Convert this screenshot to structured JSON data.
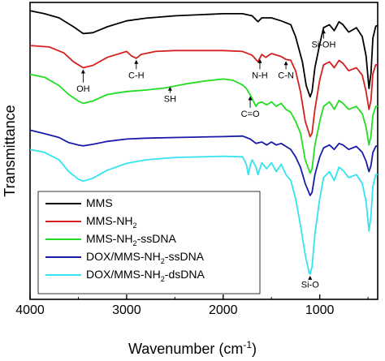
{
  "chart_data": {
    "type": "line",
    "xlabel": "Wavenumber (cm",
    "xlabel_sup": "-1",
    "xlabel_close": ")",
    "ylabel": "Transmittance",
    "xlim": [
      4000,
      400
    ],
    "x_reversed": true,
    "ylim": [
      0,
      1
    ],
    "y_ticks_shown": false,
    "grid": false,
    "legend_placement": "bottom-left",
    "x_ticks": [
      {
        "value": 4000,
        "label": "4000"
      },
      {
        "value": 3000,
        "label": "3000"
      },
      {
        "value": 2000,
        "label": "2000"
      },
      {
        "value": 1000,
        "label": "1000"
      }
    ],
    "series": [
      {
        "name": "MMS",
        "name_sub": "",
        "name_rest": "",
        "color": "#000000",
        "points": [
          [
            4000,
            0.972
          ],
          [
            3850,
            0.962
          ],
          [
            3700,
            0.948
          ],
          [
            3550,
            0.918
          ],
          [
            3450,
            0.895
          ],
          [
            3350,
            0.898
          ],
          [
            3200,
            0.918
          ],
          [
            3000,
            0.938
          ],
          [
            2800,
            0.947
          ],
          [
            2500,
            0.955
          ],
          [
            2000,
            0.962
          ],
          [
            1800,
            0.962
          ],
          [
            1700,
            0.955
          ],
          [
            1640,
            0.935
          ],
          [
            1600,
            0.948
          ],
          [
            1500,
            0.948
          ],
          [
            1400,
            0.938
          ],
          [
            1300,
            0.925
          ],
          [
            1250,
            0.885
          ],
          [
            1180,
            0.8
          ],
          [
            1140,
            0.72
          ],
          [
            1100,
            0.682
          ],
          [
            1080,
            0.7
          ],
          [
            1050,
            0.78
          ],
          [
            1000,
            0.86
          ],
          [
            960,
            0.915
          ],
          [
            900,
            0.925
          ],
          [
            850,
            0.905
          ],
          [
            800,
            0.935
          ],
          [
            760,
            0.925
          ],
          [
            700,
            0.9
          ],
          [
            620,
            0.915
          ],
          [
            560,
            0.885
          ],
          [
            520,
            0.82
          ],
          [
            490,
            0.71
          ],
          [
            470,
            0.76
          ],
          [
            450,
            0.88
          ],
          [
            420,
            0.92
          ],
          [
            400,
            0.922
          ]
        ]
      },
      {
        "name": "MMS-NH",
        "name_sub": "2",
        "name_rest": "",
        "color": "#d42020",
        "points": [
          [
            4000,
            0.855
          ],
          [
            3800,
            0.85
          ],
          [
            3650,
            0.83
          ],
          [
            3550,
            0.8
          ],
          [
            3450,
            0.78
          ],
          [
            3350,
            0.788
          ],
          [
            3200,
            0.815
          ],
          [
            3000,
            0.835
          ],
          [
            2950,
            0.82
          ],
          [
            2900,
            0.812
          ],
          [
            2850,
            0.825
          ],
          [
            2700,
            0.835
          ],
          [
            2500,
            0.838
          ],
          [
            2000,
            0.838
          ],
          [
            1800,
            0.835
          ],
          [
            1700,
            0.822
          ],
          [
            1640,
            0.8
          ],
          [
            1600,
            0.825
          ],
          [
            1560,
            0.815
          ],
          [
            1500,
            0.828
          ],
          [
            1400,
            0.818
          ],
          [
            1350,
            0.808
          ],
          [
            1300,
            0.805
          ],
          [
            1250,
            0.77
          ],
          [
            1200,
            0.7
          ],
          [
            1150,
            0.6
          ],
          [
            1100,
            0.548
          ],
          [
            1080,
            0.56
          ],
          [
            1050,
            0.64
          ],
          [
            1000,
            0.74
          ],
          [
            960,
            0.79
          ],
          [
            900,
            0.8
          ],
          [
            850,
            0.78
          ],
          [
            800,
            0.805
          ],
          [
            760,
            0.795
          ],
          [
            700,
            0.77
          ],
          [
            620,
            0.78
          ],
          [
            560,
            0.755
          ],
          [
            520,
            0.7
          ],
          [
            490,
            0.64
          ],
          [
            470,
            0.67
          ],
          [
            450,
            0.76
          ],
          [
            420,
            0.79
          ],
          [
            400,
            0.79
          ]
        ]
      },
      {
        "name": "MMS-NH",
        "name_sub": "2",
        "name_rest": "-ssDNA",
        "color": "#22dd22",
        "points": [
          [
            4000,
            0.758
          ],
          [
            3850,
            0.748
          ],
          [
            3700,
            0.72
          ],
          [
            3600,
            0.69
          ],
          [
            3500,
            0.668
          ],
          [
            3450,
            0.66
          ],
          [
            3350,
            0.668
          ],
          [
            3200,
            0.69
          ],
          [
            3000,
            0.7
          ],
          [
            2800,
            0.705
          ],
          [
            2600,
            0.712
          ],
          [
            2400,
            0.725
          ],
          [
            2200,
            0.735
          ],
          [
            2000,
            0.742
          ],
          [
            1900,
            0.738
          ],
          [
            1800,
            0.722
          ],
          [
            1760,
            0.71
          ],
          [
            1720,
            0.688
          ],
          [
            1660,
            0.65
          ],
          [
            1640,
            0.66
          ],
          [
            1600,
            0.665
          ],
          [
            1550,
            0.655
          ],
          [
            1500,
            0.665
          ],
          [
            1450,
            0.65
          ],
          [
            1400,
            0.66
          ],
          [
            1350,
            0.64
          ],
          [
            1300,
            0.63
          ],
          [
            1250,
            0.6
          ],
          [
            1200,
            0.56
          ],
          [
            1150,
            0.47
          ],
          [
            1100,
            0.425
          ],
          [
            1080,
            0.44
          ],
          [
            1050,
            0.52
          ],
          [
            1000,
            0.6
          ],
          [
            960,
            0.65
          ],
          [
            900,
            0.665
          ],
          [
            850,
            0.64
          ],
          [
            800,
            0.67
          ],
          [
            760,
            0.66
          ],
          [
            700,
            0.64
          ],
          [
            620,
            0.65
          ],
          [
            560,
            0.625
          ],
          [
            520,
            0.58
          ],
          [
            490,
            0.52
          ],
          [
            470,
            0.55
          ],
          [
            450,
            0.62
          ],
          [
            420,
            0.65
          ],
          [
            400,
            0.65
          ]
        ]
      },
      {
        "name": "DOX/MMS-NH",
        "name_sub": "2",
        "name_rest": "-ssDNA",
        "color": "#1a1aaa",
        "points": [
          [
            4000,
            0.57
          ],
          [
            3850,
            0.558
          ],
          [
            3700,
            0.545
          ],
          [
            3600,
            0.528
          ],
          [
            3500,
            0.52
          ],
          [
            3450,
            0.517
          ],
          [
            3350,
            0.522
          ],
          [
            3200,
            0.532
          ],
          [
            3000,
            0.54
          ],
          [
            2800,
            0.543
          ],
          [
            2500,
            0.545
          ],
          [
            2000,
            0.548
          ],
          [
            1800,
            0.55
          ],
          [
            1760,
            0.545
          ],
          [
            1720,
            0.54
          ],
          [
            1660,
            0.525
          ],
          [
            1600,
            0.53
          ],
          [
            1550,
            0.52
          ],
          [
            1500,
            0.53
          ],
          [
            1450,
            0.52
          ],
          [
            1400,
            0.525
          ],
          [
            1350,
            0.515
          ],
          [
            1300,
            0.505
          ],
          [
            1250,
            0.48
          ],
          [
            1200,
            0.445
          ],
          [
            1150,
            0.39
          ],
          [
            1100,
            0.35
          ],
          [
            1080,
            0.36
          ],
          [
            1050,
            0.42
          ],
          [
            1000,
            0.48
          ],
          [
            960,
            0.51
          ],
          [
            900,
            0.52
          ],
          [
            850,
            0.505
          ],
          [
            800,
            0.525
          ],
          [
            760,
            0.52
          ],
          [
            700,
            0.505
          ],
          [
            620,
            0.515
          ],
          [
            560,
            0.495
          ],
          [
            520,
            0.465
          ],
          [
            490,
            0.43
          ],
          [
            470,
            0.45
          ],
          [
            450,
            0.495
          ],
          [
            420,
            0.515
          ],
          [
            400,
            0.518
          ]
        ]
      },
      {
        "name": "DOX/MMS-NH",
        "name_sub": "2",
        "name_rest": "-dsDNA",
        "color": "#33e3ee",
        "points": [
          [
            4000,
            0.505
          ],
          [
            3850,
            0.495
          ],
          [
            3700,
            0.47
          ],
          [
            3600,
            0.43
          ],
          [
            3500,
            0.405
          ],
          [
            3450,
            0.398
          ],
          [
            3350,
            0.408
          ],
          [
            3200,
            0.435
          ],
          [
            3000,
            0.458
          ],
          [
            2800,
            0.47
          ],
          [
            2500,
            0.478
          ],
          [
            2000,
            0.482
          ],
          [
            1800,
            0.48
          ],
          [
            1760,
            0.455
          ],
          [
            1740,
            0.42
          ],
          [
            1720,
            0.45
          ],
          [
            1700,
            0.47
          ],
          [
            1660,
            0.445
          ],
          [
            1640,
            0.42
          ],
          [
            1600,
            0.46
          ],
          [
            1550,
            0.44
          ],
          [
            1500,
            0.46
          ],
          [
            1450,
            0.43
          ],
          [
            1400,
            0.455
          ],
          [
            1350,
            0.42
          ],
          [
            1300,
            0.4
          ],
          [
            1250,
            0.34
          ],
          [
            1200,
            0.25
          ],
          [
            1150,
            0.15
          ],
          [
            1110,
            0.09
          ],
          [
            1100,
            0.085
          ],
          [
            1080,
            0.11
          ],
          [
            1050,
            0.22
          ],
          [
            1000,
            0.34
          ],
          [
            960,
            0.41
          ],
          [
            900,
            0.43
          ],
          [
            850,
            0.4
          ],
          [
            800,
            0.445
          ],
          [
            760,
            0.435
          ],
          [
            700,
            0.41
          ],
          [
            620,
            0.42
          ],
          [
            560,
            0.39
          ],
          [
            520,
            0.33
          ],
          [
            490,
            0.23
          ],
          [
            470,
            0.28
          ],
          [
            450,
            0.38
          ],
          [
            420,
            0.42
          ],
          [
            400,
            0.42
          ]
        ]
      }
    ],
    "annotations": [
      {
        "text": "OH",
        "x": 3450,
        "y": 0.78,
        "label_y": 0.7
      },
      {
        "text": "C-H",
        "x": 2900,
        "y": 0.812,
        "label_y": 0.745
      },
      {
        "text": "SH",
        "x": 2550,
        "y": 0.722,
        "label_y": 0.665
      },
      {
        "text": "C=O",
        "x": 1720,
        "y": 0.69,
        "label_y": 0.615
      },
      {
        "text": "N-H",
        "x": 1620,
        "y": 0.815,
        "label_y": 0.745
      },
      {
        "text": "C-N",
        "x": 1350,
        "y": 0.808,
        "label_y": 0.745
      },
      {
        "text": "Si-OH",
        "x": 960,
        "y": 0.915,
        "label_y": 0.848
      },
      {
        "text": "Si-O",
        "x": 1100,
        "y": 0.085,
        "label_y": 0.04
      }
    ]
  }
}
